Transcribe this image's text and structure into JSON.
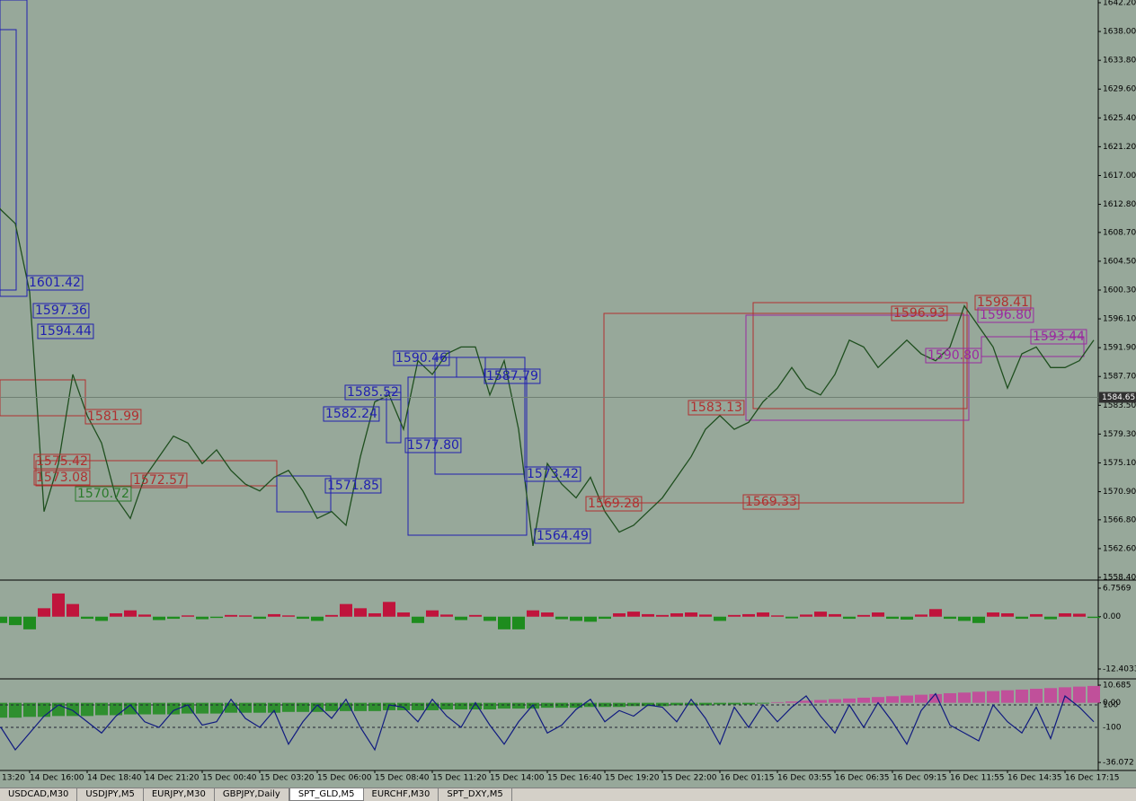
{
  "chart_data": [
    {
      "type": "line",
      "color": "#1f4f1f",
      "categories": [
        "13:20",
        null,
        null,
        "14 Dec 16:00",
        null,
        null,
        null,
        "14 Dec 18:40",
        null,
        null,
        null,
        "14 Dec 21:20",
        null,
        null,
        null,
        "15 Dec 00:40",
        null,
        null,
        null,
        "15 Dec 03:20",
        null,
        null,
        null,
        "15 Dec 06:00",
        null,
        null,
        null,
        "15 Dec 08:40",
        null,
        null,
        null,
        "15 Dec 11:20",
        null,
        null,
        null,
        "15 Dec 14:00",
        null,
        null,
        null,
        "15 Dec 16:40",
        null,
        null,
        null,
        "15 Dec 19:20",
        null,
        null,
        null,
        "15 Dec 22:00",
        null,
        null,
        null,
        "16 Dec 01:15",
        null,
        null,
        null,
        "16 Dec 03:55",
        null,
        null,
        null,
        "16 Dec 06:35",
        null,
        null,
        null,
        "16 Dec 09:15",
        null,
        null,
        null,
        "16 Dec 11:55",
        null,
        null,
        null,
        "16 Dec 14:35",
        null,
        null,
        null,
        "16 Dec 17:15",
        null,
        null
      ],
      "values": [
        1615,
        1612,
        1610,
        1600,
        1568,
        1575,
        1588,
        1582,
        1578,
        1570,
        1567,
        1573,
        1576,
        1579,
        1578,
        1575,
        1577,
        1574,
        1572,
        1571,
        1573,
        1574,
        1571,
        1567,
        1568,
        1566,
        1576,
        1584,
        1585,
        1580,
        1590,
        1588,
        1591,
        1592,
        1592,
        1585,
        1590,
        1580,
        1563,
        1575,
        1572,
        1570,
        1573,
        1568,
        1565,
        1566,
        1568,
        1570,
        1573,
        1576,
        1580,
        1582,
        1580,
        1581,
        1584,
        1586,
        1589,
        1586,
        1585,
        1588,
        1593,
        1592,
        1589,
        1591,
        1593,
        1591,
        1590,
        1592,
        1598,
        1595,
        1592,
        1586,
        1591,
        1592,
        1589,
        1589,
        1590,
        1593
      ],
      "ylim": [
        1558.4,
        1642.2
      ],
      "yticks": [
        {
          "value": 1642.2,
          "label": "1642.20"
        },
        {
          "value": 1638,
          "label": "1638.00"
        },
        {
          "value": 1633.8,
          "label": "1633.80"
        },
        {
          "value": 1629.6,
          "label": "1629.60"
        },
        {
          "value": 1625.4,
          "label": "1625.40"
        },
        {
          "value": 1621.2,
          "label": "1621.20"
        },
        {
          "value": 1617,
          "label": "1617.00"
        },
        {
          "value": 1612.8,
          "label": "1612.80"
        },
        {
          "value": 1608.7,
          "label": "1608.70"
        },
        {
          "value": 1604.5,
          "label": "1604.50"
        },
        {
          "value": 1600.3,
          "label": "1600.30"
        },
        {
          "value": 1596.1,
          "label": "1596.10"
        },
        {
          "value": 1591.9,
          "label": "1591.90"
        },
        {
          "value": 1587.7,
          "label": "1587.70"
        },
        {
          "value": 1583.5,
          "label": "1583.50"
        },
        {
          "value": 1579.3,
          "label": "1579.30"
        },
        {
          "value": 1575.1,
          "label": "1575.10"
        },
        {
          "value": 1570.9,
          "label": "1570.90"
        },
        {
          "value": 1566.8,
          "label": "1566.80"
        },
        {
          "value": 1562.6,
          "label": "1562.60"
        },
        {
          "value": 1558.4,
          "label": "1558.40"
        }
      ],
      "current_price": {
        "value": 1584.65,
        "label": "1584.65"
      },
      "annotations": [
        {
          "text": "1601.42",
          "color": "#2020b0"
        },
        {
          "text": "1597.36",
          "color": "#2020b0"
        },
        {
          "text": "1594.44",
          "color": "#2020b0"
        },
        {
          "text": "1590.46",
          "color": "#2020b0"
        },
        {
          "text": "1587.79",
          "color": "#2020b0"
        },
        {
          "text": "1585.52",
          "color": "#2020b0"
        },
        {
          "text": "1582.24",
          "color": "#2020b0"
        },
        {
          "text": "1577.80",
          "color": "#2020b0"
        },
        {
          "text": "1573.42",
          "color": "#2020b0"
        },
        {
          "text": "1571.85",
          "color": "#2020b0"
        },
        {
          "text": "1564.49",
          "color": "#2020b0"
        },
        {
          "text": "1581.99",
          "color": "#b03030"
        },
        {
          "text": "1575.42",
          "color": "#b03030"
        },
        {
          "text": "1573.08",
          "color": "#b03030"
        },
        {
          "text": "1572.57",
          "color": "#b03030"
        },
        {
          "text": "1569.28",
          "color": "#b03030"
        },
        {
          "text": "1569.33",
          "color": "#b03030"
        },
        {
          "text": "1583.13",
          "color": "#b03030"
        },
        {
          "text": "1596.93",
          "color": "#b03030"
        },
        {
          "text": "1598.41",
          "color": "#b03030"
        },
        {
          "text": "1570.72",
          "color": "#2a7a2a"
        },
        {
          "text": "1596.80",
          "color": "#9a2aa0"
        },
        {
          "text": "1593.44",
          "color": "#9a2aa0"
        },
        {
          "text": "1590.80",
          "color": "#9a2aa0"
        }
      ]
    },
    {
      "type": "bar",
      "color_up": "#c0143c",
      "color_down": "#1e8c1e",
      "values": [
        0.5,
        -1.5,
        -2,
        -3,
        2,
        5.5,
        3,
        -0.5,
        -1,
        0.8,
        1.5,
        0.5,
        -0.8,
        -0.5,
        0.3,
        -0.6,
        -0.3,
        0.4,
        0.3,
        -0.5,
        0.6,
        0.3,
        -0.5,
        -1,
        0.4,
        3,
        2,
        0.8,
        3.5,
        1,
        -1.5,
        1.5,
        0.5,
        -0.8,
        0.4,
        -1,
        -3,
        -3,
        1.5,
        1,
        -0.6,
        -1,
        -1.2,
        -0.5,
        0.8,
        1.2,
        0.6,
        0.4,
        0.8,
        1,
        0.5,
        -1,
        0.4,
        0.6,
        1,
        0.3,
        -0.4,
        0.5,
        1.2,
        0.6,
        -0.5,
        0.4,
        1,
        -0.5,
        -0.7,
        0.5,
        1.8,
        -0.5,
        -1,
        -1.5,
        1,
        0.8,
        -0.5,
        0.6,
        -0.6,
        0.8,
        0.7,
        -0.3
      ],
      "ylim": [
        -12.4033,
        6.7569
      ],
      "yticks": [
        {
          "value": 6.7569,
          "label": "6.7569"
        },
        {
          "value": 0,
          "label": "0.00"
        },
        {
          "value": -12.4033,
          "label": "-12.4033"
        }
      ]
    },
    {
      "type": "bar",
      "series": [
        {
          "color": "#2f8f2f",
          "color_up": "#c0509a",
          "values": [
            -9,
            -9,
            -9,
            -8.5,
            -8.5,
            -8,
            -8,
            -8,
            -7.5,
            -7.5,
            -7,
            -7,
            -7,
            -7,
            -6.5,
            -6.5,
            -6.5,
            -6,
            -6,
            -6,
            -6,
            -5.5,
            -5.5,
            -5.5,
            -5,
            -5,
            -5,
            -5,
            -4.5,
            -4.5,
            -4.5,
            -4.5,
            -4,
            -4,
            -4,
            -4,
            -3.5,
            -3.5,
            -3.5,
            -3,
            -3,
            -3,
            -2.5,
            -2.5,
            -2.5,
            -2,
            -2,
            -2,
            -1.5,
            -1.5,
            -1.5,
            -1,
            -1,
            -1,
            -0.5,
            0.4,
            0.8,
            1.3,
            1.7,
            2.2,
            2.6,
            3.1,
            3.5,
            4,
            4.4,
            4.9,
            5.3,
            5.8,
            6.2,
            6.7,
            7.1,
            7.6,
            8,
            8.5,
            8.9,
            9.4,
            9.8,
            10.2
          ]
        },
        {
          "color": "#101a80",
          "axis": "y2",
          "values": [
            -150,
            -100,
            -300,
            -150,
            0,
            100,
            50,
            -50,
            -150,
            0,
            100,
            -50,
            -100,
            50,
            100,
            -80,
            -50,
            150,
            -20,
            -100,
            50,
            -250,
            -50,
            100,
            -20,
            150,
            -100,
            -300,
            100,
            80,
            -50,
            150,
            0,
            -100,
            120,
            -80,
            -250,
            -50,
            100,
            -150,
            -80,
            60,
            150,
            -50,
            50,
            0,
            100,
            80,
            -50,
            150,
            -20,
            -250,
            80,
            -100,
            100,
            -50,
            80,
            180,
            0,
            -150,
            100,
            -100,
            120,
            -50,
            -250,
            50,
            200,
            -80,
            -150,
            -220,
            100,
            -50,
            -150,
            80,
            -200,
            180,
            80,
            -50
          ]
        }
      ],
      "ylim": [
        -36.072,
        10.685
      ],
      "yticks": [
        10.685,
        {
          "value": 0,
          "label": "0.00"
        },
        -36.072
      ],
      "y2lim": [
        -412,
        276
      ],
      "y2ticks": [
        100,
        -100
      ]
    }
  ],
  "tabs": [
    "USDCAD,M30",
    "USDJPY,M5",
    "EURJPY,M30",
    "GBPJPY,Daily",
    "SPT_GLD,M5",
    "EURCHF,M30",
    "SPT_DXY,M5"
  ],
  "active_tab": 4
}
